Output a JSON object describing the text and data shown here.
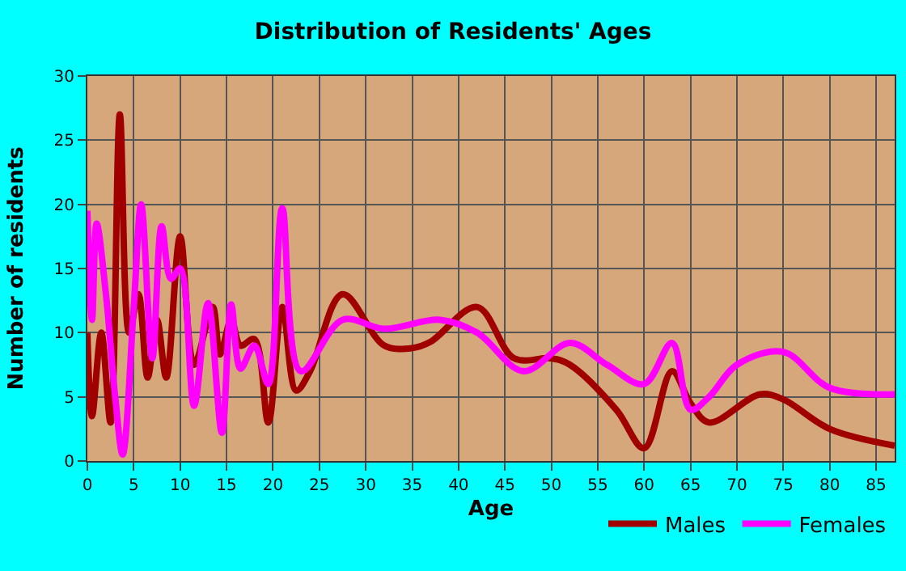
{
  "chart_data": {
    "type": "line",
    "title": "Distribution of Residents' Ages",
    "xlabel": "Age",
    "ylabel": "Number of residents",
    "xlim": [
      0,
      87
    ],
    "xticks": [
      0,
      5,
      10,
      15,
      20,
      25,
      30,
      35,
      40,
      45,
      50,
      55,
      60,
      65,
      70,
      75,
      80,
      85
    ],
    "ylim": [
      0,
      30
    ],
    "yticks": [
      0,
      5,
      10,
      15,
      20,
      25,
      30
    ],
    "grid": true,
    "legend": "bottom right",
    "marker": "none",
    "line_style": "solid",
    "series": [
      {
        "name": "Males",
        "color": "#a00000",
        "x": [
          0,
          0.5,
          1.5,
          2.5,
          3.5,
          4.5,
          5.5,
          6.5,
          7.5,
          8.5,
          10,
          11.5,
          13.5,
          14.3,
          15.5,
          16.5,
          18,
          19.5,
          21,
          22.5,
          24,
          27.5,
          32,
          35,
          37,
          42,
          46,
          50,
          52,
          57,
          60,
          63,
          65,
          67,
          72.5,
          75,
          80,
          87
        ],
        "values": [
          10,
          3.5,
          10,
          3,
          27,
          10,
          13,
          6.5,
          11,
          6.5,
          17.5,
          7.5,
          12,
          8.3,
          11,
          9,
          9.5,
          3,
          12,
          5.5,
          7,
          13,
          9,
          8.8,
          9.3,
          12,
          8,
          8,
          7.5,
          4,
          1,
          7,
          4.5,
          3,
          5.2,
          4.8,
          2.5,
          1.2
        ]
      },
      {
        "name": "Females",
        "color": "#ff00ff",
        "x": [
          0,
          0.5,
          1,
          2,
          3,
          3.8,
          5,
          5.8,
          7,
          8,
          9,
          10,
          11.5,
          13,
          14.5,
          15.5,
          16.5,
          18,
          19.5,
          21,
          23,
          27.5,
          32,
          38,
          42,
          47,
          52,
          56,
          60,
          63,
          65,
          67,
          70,
          75,
          80,
          87
        ],
        "values": [
          19.5,
          11,
          18.5,
          13,
          5,
          0.5,
          12,
          20,
          8,
          18.3,
          14.2,
          15,
          4.3,
          12.3,
          2.2,
          12.2,
          7.2,
          9,
          6,
          19.7,
          7,
          11,
          10.3,
          11,
          10,
          7,
          9.2,
          7.5,
          6,
          9.2,
          4,
          5,
          7.5,
          8.5,
          5.7,
          5.2
        ]
      }
    ]
  }
}
